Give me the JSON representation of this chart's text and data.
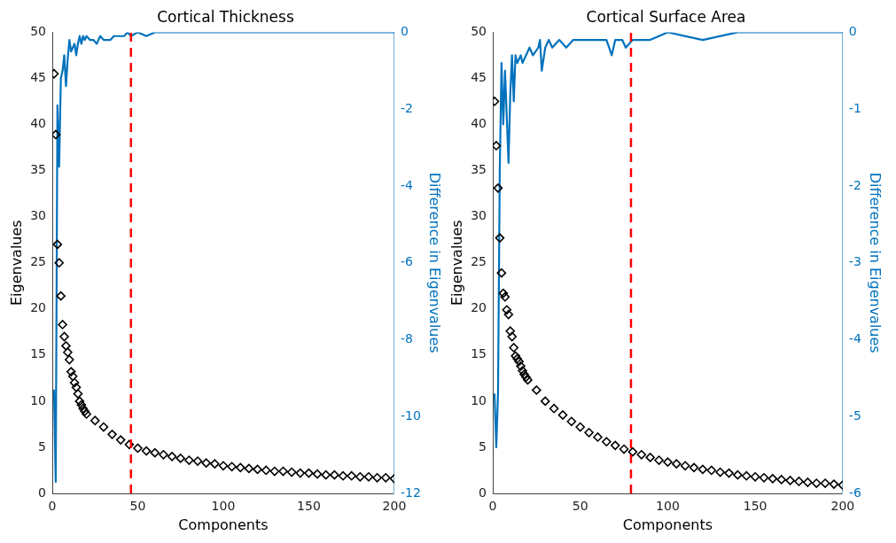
{
  "chart_data": [
    {
      "type": "scatter",
      "title": "Cortical Thickness",
      "xlabel": "Components",
      "ylabel": "Eigenvalues",
      "y2label": "Difference in Eigenvalues",
      "xlim": [
        0,
        200
      ],
      "xticks": [
        0,
        50,
        100,
        150,
        200
      ],
      "ylim": [
        0,
        50
      ],
      "yticks": [
        0,
        5,
        10,
        15,
        20,
        25,
        30,
        35,
        40,
        45,
        50
      ],
      "y2lim": [
        -12,
        0
      ],
      "y2ticks": [
        -12,
        -10,
        -8,
        -6,
        -4,
        -2,
        0
      ],
      "grid": false,
      "legend": false,
      "series": [
        {
          "type": "scatter",
          "color": "#000000",
          "marker": "diamond",
          "x": [
            1,
            2,
            3,
            4,
            5,
            6,
            7,
            8,
            9,
            10,
            11,
            12,
            13,
            14,
            15,
            16,
            17,
            18,
            19,
            20,
            25,
            30,
            35,
            40,
            45,
            50,
            55,
            60,
            65,
            70,
            75,
            80,
            85,
            90,
            95,
            100,
            105,
            110,
            115,
            120,
            125,
            130,
            135,
            140,
            145,
            150,
            155,
            160,
            165,
            170,
            175,
            180,
            185,
            190,
            195,
            200
          ],
          "values": [
            45.5,
            38.9,
            27,
            25,
            21.4,
            18.3,
            17,
            16,
            15.3,
            14.5,
            13.2,
            12.7,
            12,
            11.5,
            10.8,
            10,
            9.6,
            9.2,
            8.9,
            8.6,
            7.9,
            7.2,
            6.4,
            5.8,
            5.3,
            4.9,
            4.6,
            4.4,
            4.2,
            4.0,
            3.8,
            3.6,
            3.5,
            3.3,
            3.2,
            3.0,
            2.9,
            2.8,
            2.7,
            2.6,
            2.5,
            2.4,
            2.4,
            2.3,
            2.2,
            2.2,
            2.1,
            2.0,
            2.0,
            1.9,
            1.9,
            1.8,
            1.8,
            1.7,
            1.7,
            1.6
          ]
        },
        {
          "type": "line",
          "color": "#0072bd",
          "axis": "y2",
          "marker": "none",
          "x": [
            1,
            2,
            3,
            4,
            5,
            6,
            7,
            8,
            9,
            10,
            11,
            12,
            13,
            14,
            15,
            16,
            17,
            18,
            19,
            20,
            22,
            24,
            26,
            28,
            30,
            32,
            34,
            36,
            38,
            40,
            42,
            44,
            46,
            50,
            55,
            60,
            70,
            80,
            90,
            100,
            120,
            140,
            160,
            180,
            200
          ],
          "values": [
            -9.3,
            -11.7,
            -1.9,
            -3.5,
            -1.2,
            -1.0,
            -0.6,
            -1.4,
            -0.7,
            -0.2,
            -0.5,
            -0.4,
            -0.3,
            -0.6,
            -0.3,
            -0.1,
            -0.3,
            -0.1,
            -0.2,
            -0.1,
            -0.2,
            -0.2,
            -0.3,
            -0.1,
            -0.2,
            -0.2,
            -0.2,
            -0.1,
            -0.1,
            -0.1,
            -0.1,
            0,
            -0.1,
            0,
            -0.1,
            0,
            0,
            0,
            0,
            0,
            0,
            0,
            0,
            0,
            0
          ]
        }
      ],
      "ref_lines": [
        {
          "axis": "x",
          "value": 46,
          "color": "#ff0000",
          "line_style": "dashed"
        }
      ]
    },
    {
      "type": "scatter",
      "title": "Cortical Surface Area",
      "xlabel": "Components",
      "ylabel": "Eigenvalues",
      "y2label": "Difference in Eigenvalues",
      "xlim": [
        0,
        200
      ],
      "xticks": [
        0,
        50,
        100,
        150,
        200
      ],
      "ylim": [
        0,
        50
      ],
      "yticks": [
        0,
        5,
        10,
        15,
        20,
        25,
        30,
        35,
        40,
        45,
        50
      ],
      "y2lim": [
        -6,
        0
      ],
      "y2ticks": [
        -6,
        -5,
        -4,
        -3,
        -2,
        -1,
        0
      ],
      "grid": false,
      "legend": false,
      "series": [
        {
          "type": "scatter",
          "color": "#000000",
          "marker": "diamond",
          "x": [
            1,
            2,
            3,
            4,
            5,
            6,
            7,
            8,
            9,
            10,
            11,
            12,
            13,
            14,
            15,
            16,
            17,
            18,
            19,
            20,
            25,
            30,
            35,
            40,
            45,
            50,
            55,
            60,
            65,
            70,
            75,
            80,
            85,
            90,
            95,
            100,
            105,
            110,
            115,
            120,
            125,
            130,
            135,
            140,
            145,
            150,
            155,
            160,
            165,
            170,
            175,
            180,
            185,
            190,
            195,
            200
          ],
          "values": [
            42.5,
            37.7,
            33.1,
            27.7,
            23.9,
            21.7,
            21.3,
            19.9,
            19.4,
            17.6,
            17,
            15.8,
            14.9,
            14.6,
            14.3,
            13.8,
            13.3,
            12.9,
            12.6,
            12.3,
            11.2,
            10,
            9.2,
            8.5,
            7.8,
            7.2,
            6.6,
            6.1,
            5.6,
            5.2,
            4.8,
            4.5,
            4.2,
            3.9,
            3.6,
            3.4,
            3.2,
            3.0,
            2.8,
            2.6,
            2.5,
            2.3,
            2.2,
            2.0,
            1.9,
            1.8,
            1.7,
            1.6,
            1.5,
            1.4,
            1.3,
            1.2,
            1.1,
            1.1,
            1.0,
            0.9
          ]
        },
        {
          "type": "line",
          "color": "#0072bd",
          "axis": "y2",
          "marker": "none",
          "x": [
            1,
            2,
            3,
            4,
            5,
            6,
            7,
            8,
            9,
            10,
            11,
            12,
            13,
            14,
            16,
            17,
            19,
            21,
            23,
            26,
            27,
            28,
            30,
            32,
            34,
            38,
            42,
            46,
            50,
            55,
            60,
            65,
            68,
            70,
            74,
            76,
            80,
            90,
            100,
            120,
            140,
            160,
            180,
            200
          ],
          "values": [
            -4.7,
            -5.4,
            -4.7,
            -1.8,
            -0.4,
            -1.2,
            -0.5,
            -1.1,
            -1.7,
            -0.8,
            -0.3,
            -0.9,
            -0.3,
            -0.4,
            -0.3,
            -0.4,
            -0.3,
            -0.2,
            -0.3,
            -0.2,
            -0.1,
            -0.5,
            -0.2,
            -0.1,
            -0.2,
            -0.1,
            -0.2,
            -0.1,
            -0.1,
            -0.1,
            -0.1,
            -0.1,
            -0.3,
            -0.1,
            -0.1,
            -0.2,
            -0.1,
            -0.1,
            0,
            -0.1,
            0,
            0,
            0,
            0
          ]
        }
      ],
      "ref_lines": [
        {
          "axis": "x",
          "value": 79,
          "color": "#ff0000",
          "line_style": "dashed"
        }
      ]
    }
  ]
}
